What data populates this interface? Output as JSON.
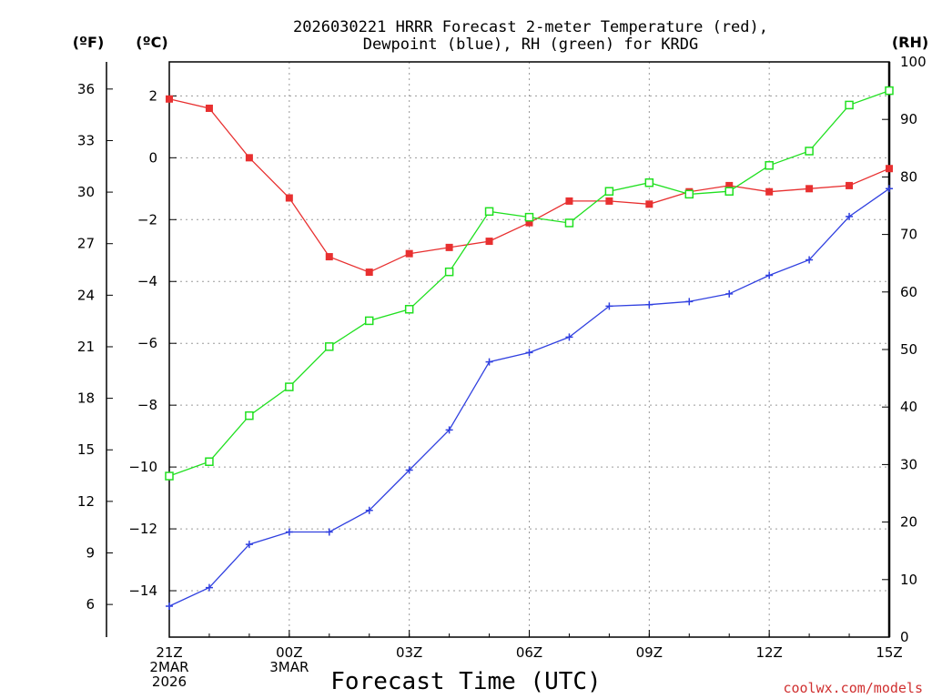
{
  "chart_data": {
    "type": "line",
    "title": "2026030221 HRRR Forecast 2-meter Temperature (red), Dewpoint (blue), RH (green) for KRDG",
    "title_lines": [
      "2026030221 HRRR Forecast 2-meter Temperature (red),",
      "Dewpoint (blue), RH (green) for KRDG"
    ],
    "xlabel": "Forecast Time (UTC)",
    "credit": "coolwx.com/models",
    "units": {
      "fahrenheit": "(ºF)",
      "celsius": "(ºC)",
      "rh": "(RH)"
    },
    "x_hours": [
      0,
      1,
      2,
      3,
      4,
      5,
      6,
      7,
      8,
      9,
      10,
      11,
      12,
      13,
      14,
      15,
      16,
      17,
      18
    ],
    "xlim": [
      0,
      18
    ],
    "x_ticks": [
      {
        "hour": 0,
        "lines": [
          "21Z",
          "2MAR",
          "2026"
        ]
      },
      {
        "hour": 3,
        "lines": [
          "00Z",
          "3MAR"
        ]
      },
      {
        "hour": 6,
        "lines": [
          "03Z"
        ]
      },
      {
        "hour": 9,
        "lines": [
          "06Z"
        ]
      },
      {
        "hour": 12,
        "lines": [
          "09Z"
        ]
      },
      {
        "hour": 15,
        "lines": [
          "12Z"
        ]
      },
      {
        "hour": 18,
        "lines": [
          "15Z"
        ]
      }
    ],
    "y_celsius": {
      "ylim": [
        -15.5,
        3.1
      ],
      "ticks": [
        "2",
        "0",
        "−2",
        "−4",
        "−6",
        "−8",
        "−10",
        "−12",
        "−14"
      ],
      "tick_values": [
        2,
        0,
        -2,
        -4,
        -6,
        -8,
        -10,
        -12,
        -14
      ]
    },
    "y_fahrenheit": {
      "ticks": [
        "36",
        "33",
        "30",
        "27",
        "24",
        "21",
        "18",
        "15",
        "12",
        "9",
        "6"
      ],
      "tick_values": [
        36,
        33,
        30,
        27,
        24,
        21,
        18,
        15,
        12,
        9,
        6
      ]
    },
    "y_rh": {
      "ylim": [
        0,
        100
      ],
      "ticks": [
        "100",
        "90",
        "80",
        "70",
        "60",
        "50",
        "40",
        "30",
        "20",
        "10",
        "0"
      ],
      "tick_values": [
        100,
        90,
        80,
        70,
        60,
        50,
        40,
        30,
        20,
        10,
        0
      ]
    },
    "series": [
      {
        "name": "Temperature",
        "axis": "celsius",
        "color": "#e83030",
        "marker": "filled-square",
        "values": [
          1.9,
          1.6,
          0.0,
          -1.3,
          -3.2,
          -3.7,
          -3.1,
          -2.9,
          -2.7,
          -2.1,
          -1.4,
          -1.4,
          -1.5,
          -1.1,
          -0.9,
          -1.1,
          -1.0,
          -0.9,
          -0.35
        ]
      },
      {
        "name": "Dewpoint",
        "axis": "celsius",
        "color": "#3040e0",
        "marker": "plus",
        "values": [
          -14.5,
          -13.9,
          -12.5,
          -12.1,
          -12.1,
          -11.4,
          -10.1,
          -8.8,
          -6.6,
          -6.3,
          -5.8,
          -4.8,
          -4.75,
          -4.65,
          -4.4,
          -3.8,
          -3.3,
          -1.9,
          -1.0
        ]
      },
      {
        "name": "RH",
        "axis": "rh",
        "color": "#20e020",
        "marker": "open-square",
        "values": [
          28,
          30.5,
          38.5,
          43.5,
          50.5,
          55,
          57,
          63.5,
          74,
          73,
          72,
          77.5,
          79,
          77,
          77.5,
          82,
          84.5,
          92.5,
          95
        ]
      }
    ]
  }
}
